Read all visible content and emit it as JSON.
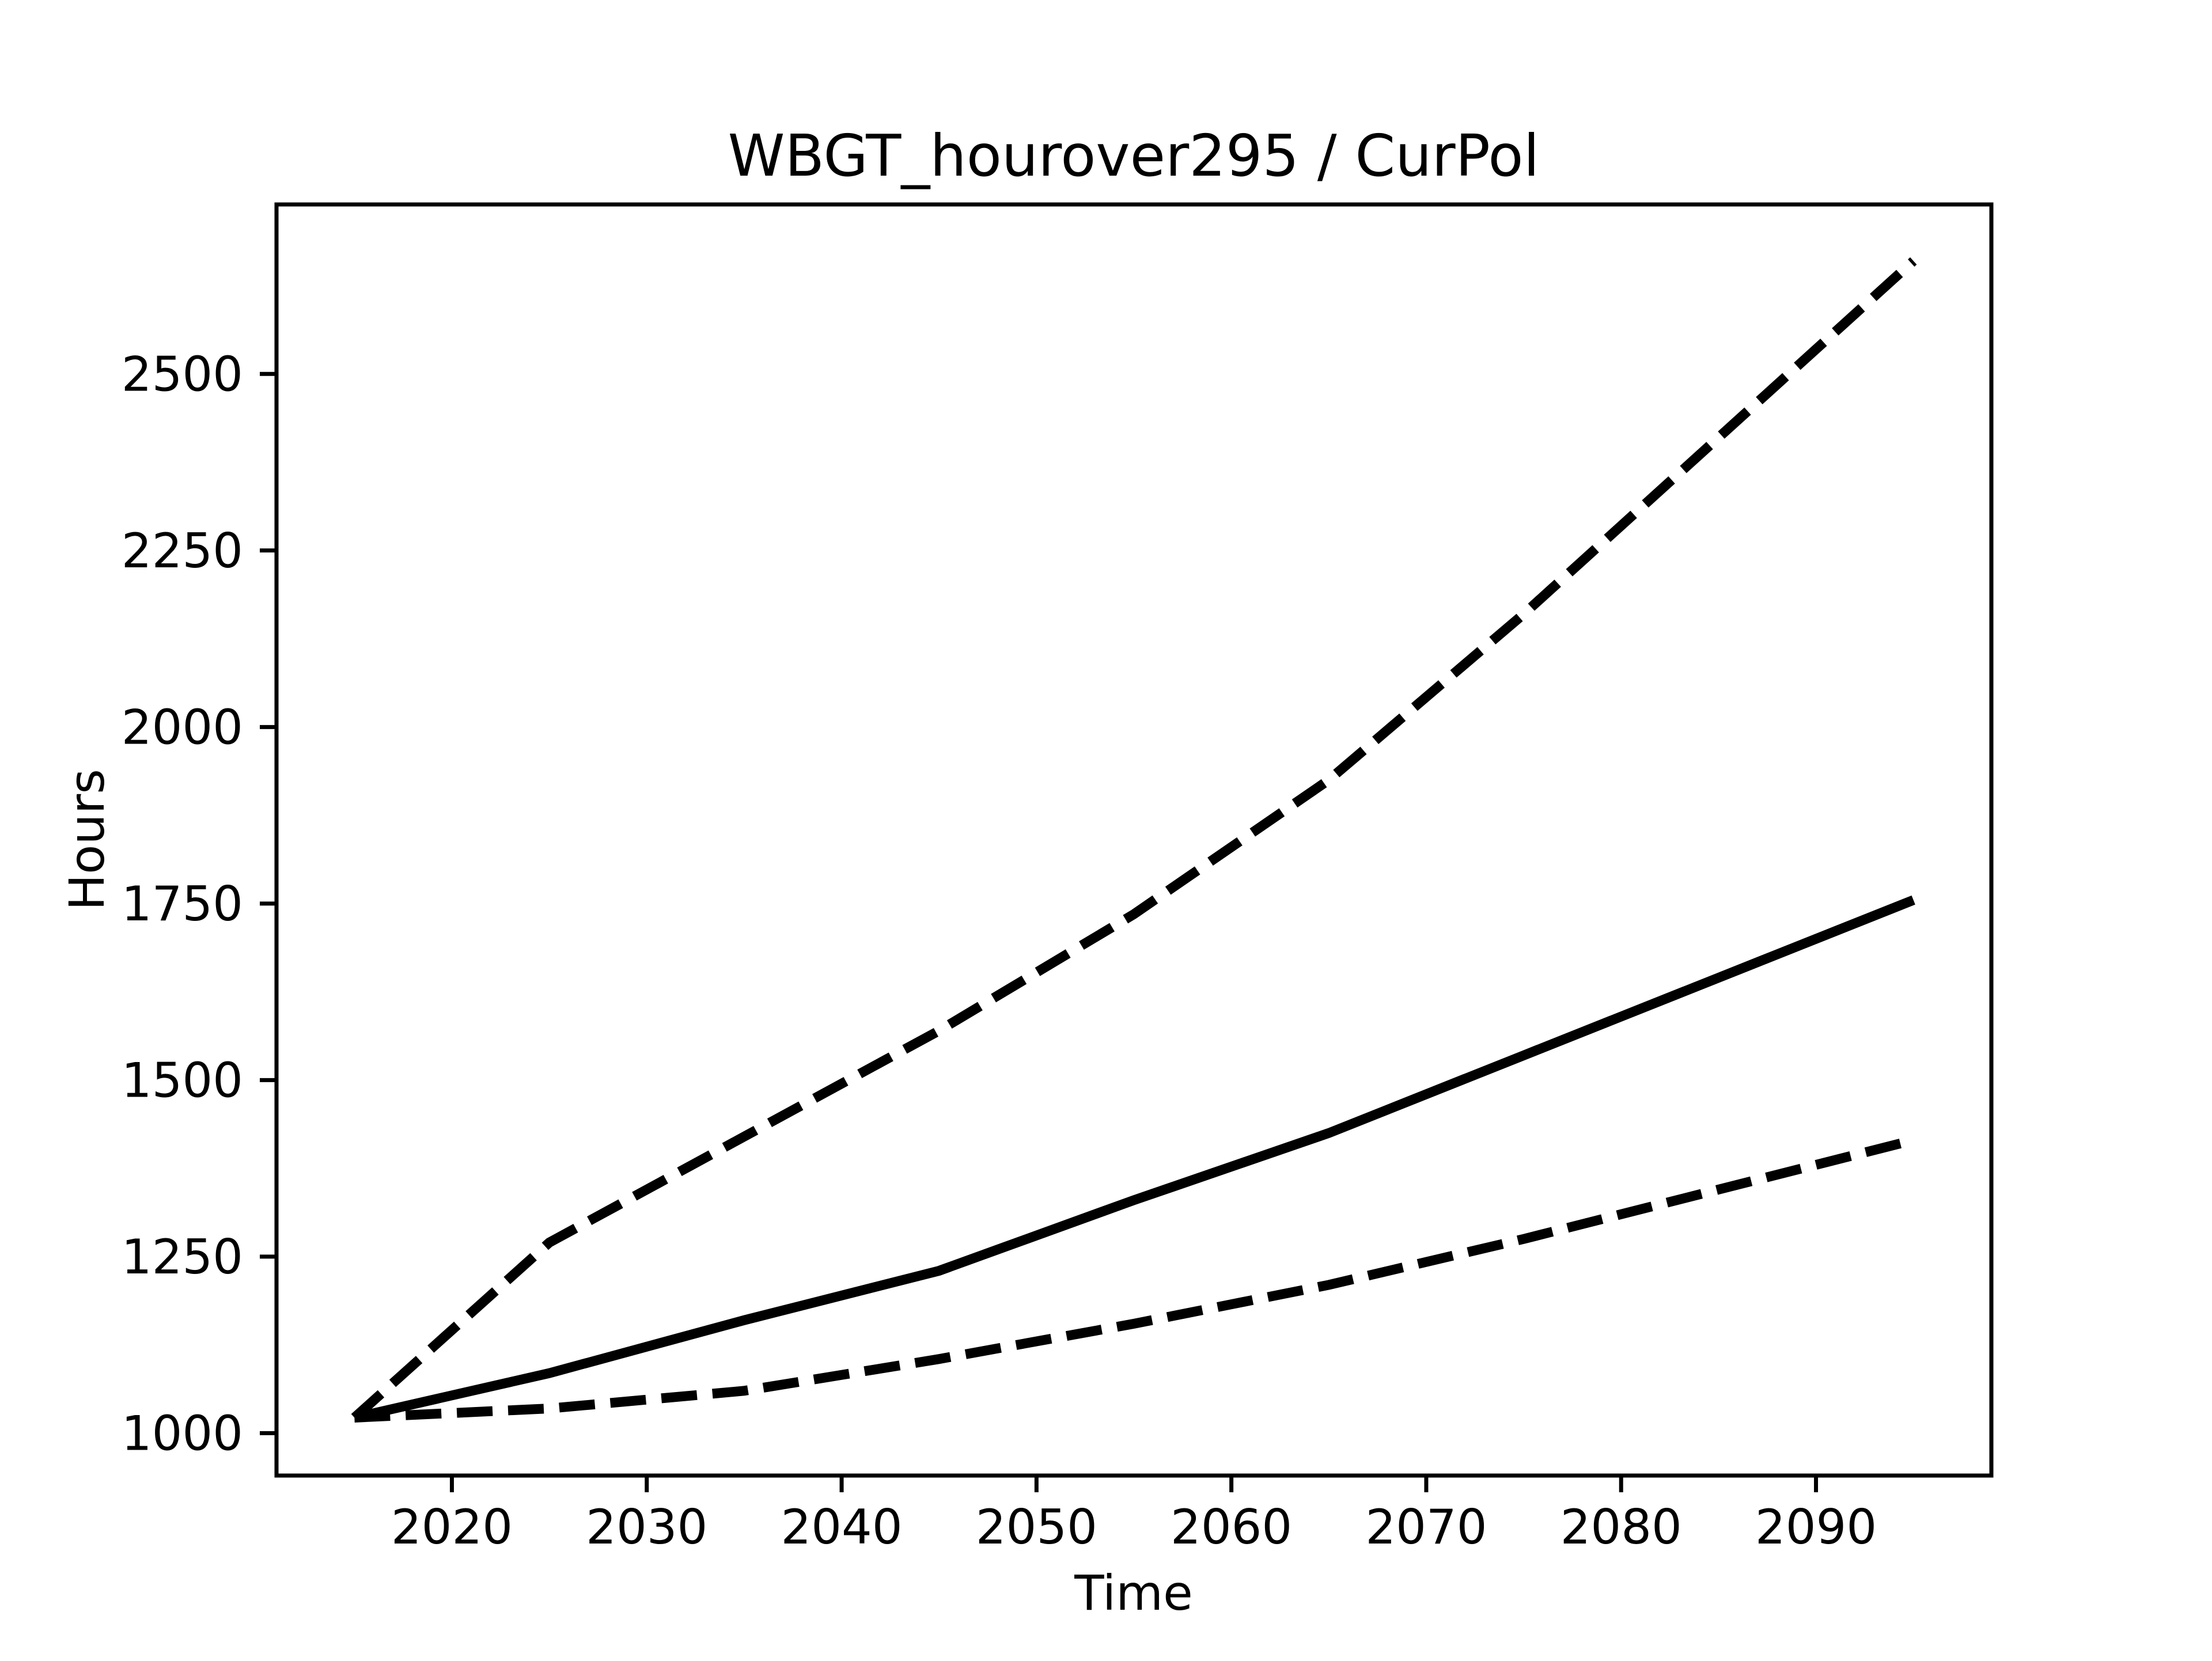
{
  "figure": {
    "background": "#ffffff",
    "line_color": "#000000",
    "axis_color": "#000000",
    "text_color": "#000000"
  },
  "chart_data": {
    "type": "line",
    "title": "WBGT_hourover295 / CurPol",
    "xlabel": "Time",
    "ylabel": "Hours",
    "x": [
      2015,
      2025,
      2035,
      2045,
      2055,
      2065,
      2075,
      2085,
      2095
    ],
    "series": [
      {
        "name": "upper-dashed",
        "linestyle": "dashed",
        "color": "#000000",
        "values": [
          1022,
          1270,
          1420,
          1570,
          1735,
          1925,
          2160,
          2410,
          2660
        ]
      },
      {
        "name": "central-solid",
        "linestyle": "solid",
        "color": "#000000",
        "values": [
          1022,
          1085,
          1160,
          1230,
          1330,
          1425,
          1535,
          1645,
          1755
        ]
      },
      {
        "name": "lower-dashed",
        "linestyle": "dashed",
        "color": "#000000",
        "values": [
          1022,
          1035,
          1060,
          1105,
          1155,
          1210,
          1275,
          1345,
          1415
        ]
      }
    ],
    "xticks": [
      2020,
      2030,
      2040,
      2050,
      2060,
      2070,
      2080,
      2090
    ],
    "yticks": [
      1000,
      1250,
      1500,
      1750,
      2000,
      2250,
      2500
    ],
    "xlim": [
      2011,
      2099
    ],
    "ylim": [
      940,
      2740
    ],
    "grid": false,
    "legend": null
  }
}
